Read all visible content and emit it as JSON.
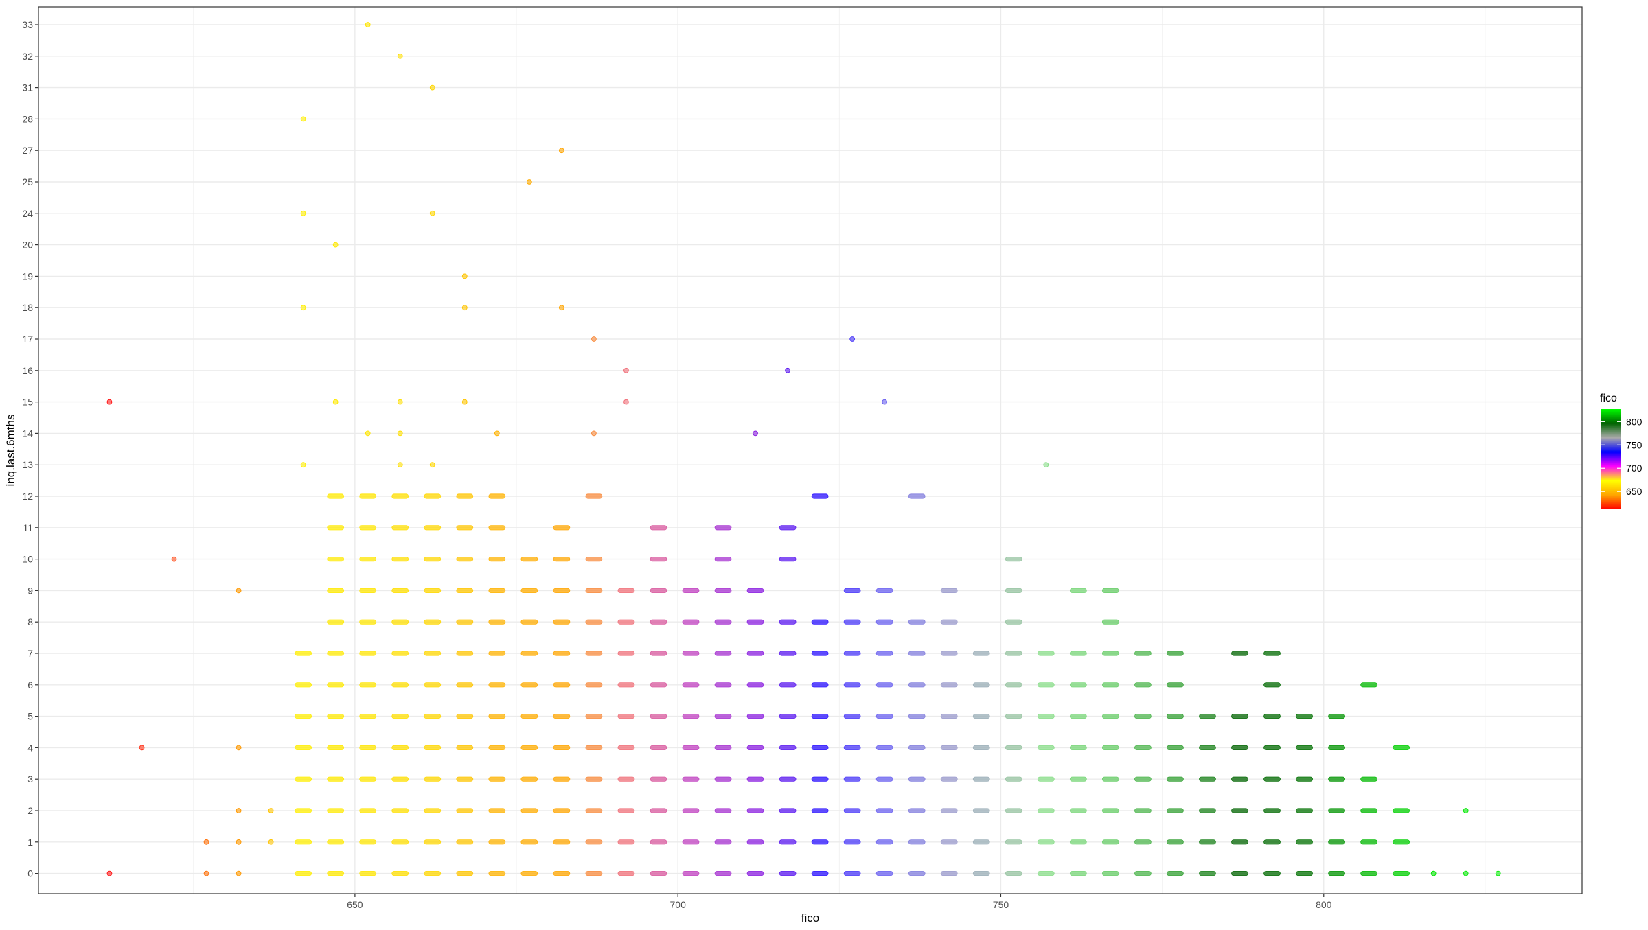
{
  "chart_data": {
    "type": "scatter",
    "xlabel": "fico",
    "ylabel": "inq.last.6mths",
    "xlim": [
      601,
      840
    ],
    "x_ticks": [
      650,
      700,
      750,
      800
    ],
    "x_tick_labels": [
      "650",
      "700",
      "750",
      "800"
    ],
    "y_categories": [
      "0",
      "1",
      "2",
      "3",
      "4",
      "5",
      "6",
      "7",
      "8",
      "9",
      "10",
      "11",
      "12",
      "13",
      "14",
      "15",
      "16",
      "17",
      "18",
      "19",
      "20",
      "24",
      "25",
      "27",
      "28",
      "31",
      "32",
      "33"
    ],
    "grid": true,
    "legend": {
      "title": "fico",
      "position": "right",
      "range": [
        612,
        827
      ],
      "labels": [
        "650",
        "700",
        "750",
        "800"
      ],
      "gradient_colors": [
        "#ff0000",
        "#ffa500",
        "#ffff00",
        "#ff00ff",
        "#0000ff",
        "#aaaaaa",
        "#006400",
        "#00ff00"
      ]
    },
    "color_stops": [
      {
        "fico": 612,
        "color": "#ff1a1a"
      },
      {
        "fico": 622,
        "color": "#ff4d1a"
      },
      {
        "fico": 632,
        "color": "#ff9900"
      },
      {
        "fico": 642,
        "color": "#ffee00"
      },
      {
        "fico": 652,
        "color": "#ffe600"
      },
      {
        "fico": 662,
        "color": "#ffd700"
      },
      {
        "fico": 672,
        "color": "#ffb300"
      },
      {
        "fico": 682,
        "color": "#ffa500"
      },
      {
        "fico": 692,
        "color": "#f0707a"
      },
      {
        "fico": 702,
        "color": "#c040c0"
      },
      {
        "fico": 712,
        "color": "#8b1fe0"
      },
      {
        "fico": 722,
        "color": "#2a10ff"
      },
      {
        "fico": 732,
        "color": "#6a60f0"
      },
      {
        "fico": 742,
        "color": "#9a9acc"
      },
      {
        "fico": 750,
        "color": "#9ab8aa"
      },
      {
        "fico": 757,
        "color": "#88dd88"
      },
      {
        "fico": 767,
        "color": "#66cc66"
      },
      {
        "fico": 777,
        "color": "#33a033"
      },
      {
        "fico": 787,
        "color": "#006400"
      },
      {
        "fico": 797,
        "color": "#007000"
      },
      {
        "fico": 807,
        "color": "#00b800"
      },
      {
        "fico": 817,
        "color": "#00e600"
      },
      {
        "fico": 827,
        "color": "#11ee11"
      }
    ],
    "series": [
      {
        "y": "0",
        "x": [
          612,
          627,
          632,
          642,
          647,
          652,
          657,
          662,
          667,
          672,
          677,
          682,
          687,
          692,
          697,
          702,
          707,
          712,
          717,
          722,
          727,
          732,
          737,
          742,
          747,
          752,
          757,
          762,
          767,
          772,
          777,
          782,
          787,
          792,
          797,
          802,
          807,
          812,
          817,
          822,
          827
        ]
      },
      {
        "y": "1",
        "x": [
          627,
          632,
          637,
          642,
          647,
          652,
          657,
          662,
          667,
          672,
          677,
          682,
          687,
          692,
          697,
          702,
          707,
          712,
          717,
          722,
          727,
          732,
          737,
          742,
          747,
          752,
          757,
          762,
          767,
          772,
          777,
          782,
          787,
          792,
          797,
          802,
          807,
          812
        ]
      },
      {
        "y": "2",
        "x": [
          632,
          637,
          642,
          647,
          652,
          657,
          662,
          667,
          672,
          677,
          682,
          687,
          692,
          697,
          702,
          707,
          712,
          717,
          722,
          727,
          732,
          737,
          742,
          747,
          752,
          757,
          762,
          767,
          772,
          777,
          782,
          787,
          792,
          797,
          802,
          807,
          812,
          822
        ]
      },
      {
        "y": "3",
        "x": [
          642,
          647,
          652,
          657,
          662,
          667,
          672,
          677,
          682,
          687,
          692,
          697,
          702,
          707,
          712,
          717,
          722,
          727,
          732,
          737,
          742,
          747,
          752,
          757,
          762,
          767,
          772,
          777,
          782,
          787,
          792,
          797,
          802,
          807
        ]
      },
      {
        "y": "4",
        "x": [
          617,
          632,
          642,
          647,
          652,
          657,
          662,
          667,
          672,
          677,
          682,
          687,
          692,
          697,
          702,
          707,
          712,
          717,
          722,
          727,
          732,
          737,
          742,
          747,
          752,
          757,
          762,
          767,
          772,
          777,
          782,
          787,
          792,
          797,
          802,
          812
        ]
      },
      {
        "y": "5",
        "x": [
          642,
          647,
          652,
          657,
          662,
          667,
          672,
          677,
          682,
          687,
          692,
          697,
          702,
          707,
          712,
          717,
          722,
          727,
          732,
          737,
          742,
          747,
          752,
          757,
          762,
          767,
          772,
          777,
          782,
          787,
          792,
          797,
          802
        ]
      },
      {
        "y": "6",
        "x": [
          642,
          647,
          652,
          657,
          662,
          667,
          672,
          677,
          682,
          687,
          692,
          697,
          702,
          707,
          712,
          717,
          722,
          727,
          732,
          737,
          742,
          747,
          752,
          757,
          762,
          767,
          772,
          777,
          792,
          807
        ]
      },
      {
        "y": "7",
        "x": [
          642,
          647,
          652,
          657,
          662,
          667,
          672,
          677,
          682,
          687,
          692,
          697,
          702,
          707,
          712,
          717,
          722,
          727,
          732,
          737,
          742,
          747,
          752,
          757,
          762,
          767,
          772,
          777,
          787,
          792
        ]
      },
      {
        "y": "8",
        "x": [
          647,
          652,
          657,
          662,
          667,
          672,
          677,
          682,
          687,
          692,
          697,
          702,
          707,
          712,
          717,
          722,
          727,
          732,
          737,
          742,
          752,
          767
        ]
      },
      {
        "y": "9",
        "x": [
          632,
          647,
          652,
          657,
          662,
          667,
          672,
          677,
          682,
          687,
          692,
          697,
          702,
          707,
          712,
          727,
          732,
          742,
          752,
          762,
          767
        ]
      },
      {
        "y": "10",
        "x": [
          622,
          647,
          652,
          657,
          662,
          667,
          672,
          677,
          682,
          687,
          697,
          707,
          717,
          752
        ]
      },
      {
        "y": "11",
        "x": [
          647,
          652,
          657,
          662,
          667,
          672,
          682,
          697,
          707,
          717
        ]
      },
      {
        "y": "12",
        "x": [
          647,
          652,
          657,
          662,
          667,
          672,
          687,
          722,
          737
        ]
      },
      {
        "y": "13",
        "x": [
          642,
          657,
          662,
          757
        ]
      },
      {
        "y": "14",
        "x": [
          652,
          657,
          672,
          687,
          712
        ]
      },
      {
        "y": "15",
        "x": [
          612,
          647,
          657,
          667,
          692,
          732
        ]
      },
      {
        "y": "16",
        "x": [
          692,
          717
        ]
      },
      {
        "y": "17",
        "x": [
          687,
          727
        ]
      },
      {
        "y": "18",
        "x": [
          642,
          667,
          682
        ]
      },
      {
        "y": "19",
        "x": [
          667
        ]
      },
      {
        "y": "20",
        "x": [
          647
        ]
      },
      {
        "y": "24",
        "x": [
          642,
          662
        ]
      },
      {
        "y": "25",
        "x": [
          677
        ]
      },
      {
        "y": "27",
        "x": [
          682
        ]
      },
      {
        "y": "28",
        "x": [
          642
        ]
      },
      {
        "y": "31",
        "x": [
          662
        ]
      },
      {
        "y": "32",
        "x": [
          657
        ]
      },
      {
        "y": "33",
        "x": [
          652
        ]
      }
    ]
  }
}
